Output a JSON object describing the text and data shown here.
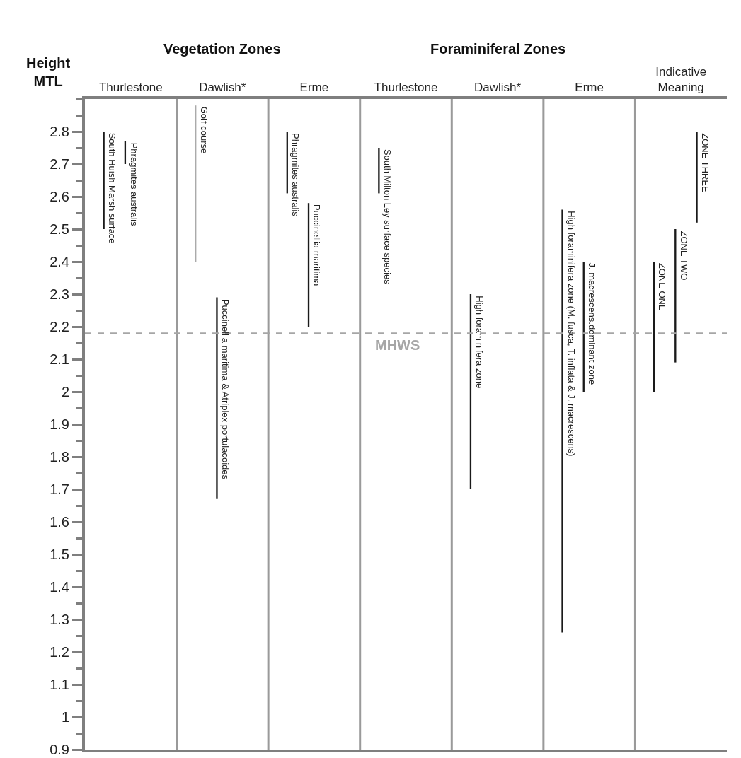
{
  "chart_data": {
    "type": "bar",
    "ylabel": "Height MTL",
    "categories": [
      "Thurlestone",
      "Dawlish*",
      "Erme",
      "Thurlestone",
      "Dawlish*",
      "Erme",
      "Indicative Meaning"
    ],
    "series": [
      {
        "values": [
          0.3,
          0.48,
          0.19,
          0.14,
          0.6,
          1.3,
          0.4
        ],
        "base": [
          2.5,
          2.4,
          2.61,
          2.61,
          1.7,
          1.26,
          2.0
        ],
        "colors": [
          "#1a1a1a",
          "#aaaaaa",
          "#1a1a1a",
          "#1a1a1a",
          "#1a1a1a",
          "#1a1a1a",
          "#1a1a1a"
        ],
        "value_labels": [
          "South Huish Marsh surface",
          "Golf course",
          "Phragmites australis",
          "South Milton Ley surface species",
          "High foraminifera zone",
          "High foraminifera zone (M. fusca, T. inflata & J. macrescens)",
          "ZONE ONE"
        ]
      },
      {
        "values": [
          0.07,
          0.62,
          0.38,
          null,
          null,
          0.4,
          0.41
        ],
        "base": [
          2.7,
          1.67,
          2.2,
          null,
          null,
          2.0,
          2.09
        ],
        "color": "#1a1a1a",
        "value_labels": [
          "Phragmites australis",
          "Puccinellia maritima & Atriplex portulacoides",
          "Puccinellia maritima",
          null,
          null,
          "J. macrescens.dominant zone",
          "ZONE TWO"
        ]
      },
      {
        "values": [
          null,
          null,
          null,
          null,
          null,
          null,
          0.28
        ],
        "base": [
          null,
          null,
          null,
          null,
          null,
          null,
          2.52
        ],
        "color": "#1a1a1a",
        "value_labels": [
          null,
          null,
          null,
          null,
          null,
          null,
          "ZONE THREE"
        ]
      }
    ],
    "ylim": [
      0.9,
      2.9
    ],
    "yticks": [
      0.9,
      1,
      1.1,
      1.2,
      1.3,
      1.4,
      1.5,
      1.6,
      1.7,
      1.8,
      1.9,
      2,
      2.1,
      2.2,
      2.3,
      2.4,
      2.5,
      2.6,
      2.7,
      2.8
    ],
    "grid": "x",
    "ref_lines": [
      {
        "axis": "y",
        "value": 2.18,
        "label": "MHWS",
        "color": "#a6a6a6",
        "line_style": "dashed"
      }
    ],
    "annotations": [
      "Vegetation Zones",
      "Foraminiferal Zones"
    ]
  }
}
